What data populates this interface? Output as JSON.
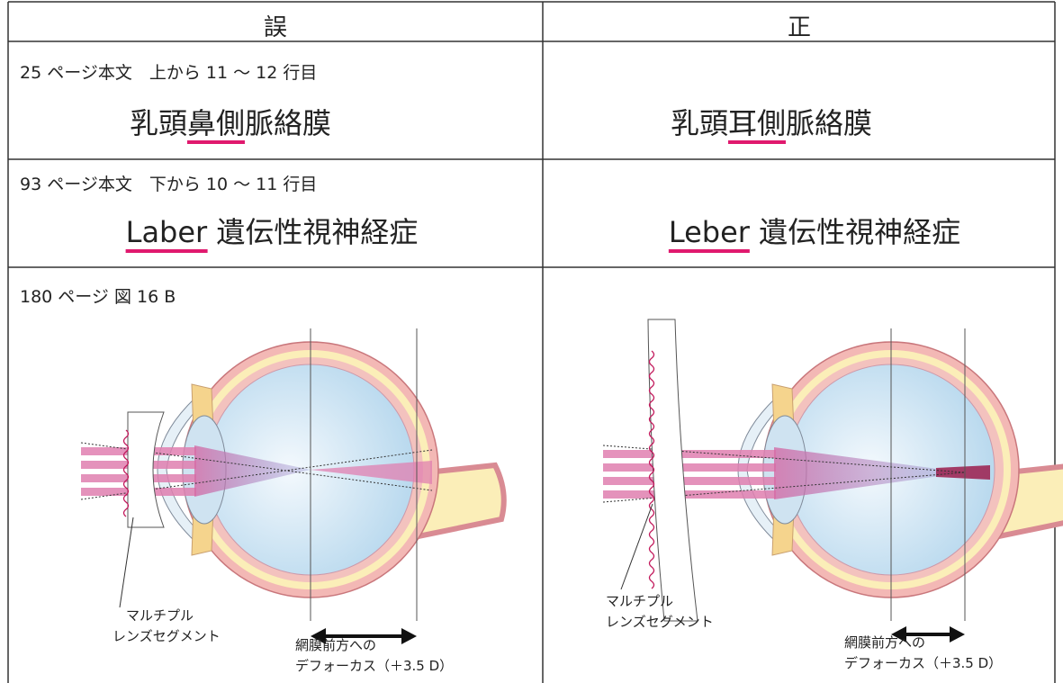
{
  "table": {
    "headers": [
      "誤",
      "正"
    ],
    "rows": [
      {
        "location": "25 ページ本文　上から 11 ～ 12 行目",
        "wrong": {
          "before": "乳頭",
          "marked": "鼻側",
          "after": "脈絡膜"
        },
        "correct": {
          "before": "乳頭",
          "marked": "耳側",
          "after": "脈絡膜"
        }
      },
      {
        "location": "93 ページ本文　下から 10 ～ 11 行目",
        "wrong": {
          "marked": "Laber",
          "after": " 遺伝性視神経症"
        },
        "correct": {
          "marked": "Leber",
          "after": " 遺伝性視神経症"
        }
      },
      {
        "location": "180 ページ 図 16 B",
        "wrong_figure": {
          "lens_label": [
            "マルチプル",
            "レンズセグメント"
          ],
          "defocus_label": [
            "網膜前方への",
            "デフォーカス（＋3.5 D）"
          ]
        },
        "correct_figure": {
          "lens_label": [
            "マルチプル",
            "レンズセグメント"
          ],
          "defocus_label": [
            "網膜前方への",
            "デフォーカス（＋3.5 D）"
          ]
        }
      }
    ]
  }
}
